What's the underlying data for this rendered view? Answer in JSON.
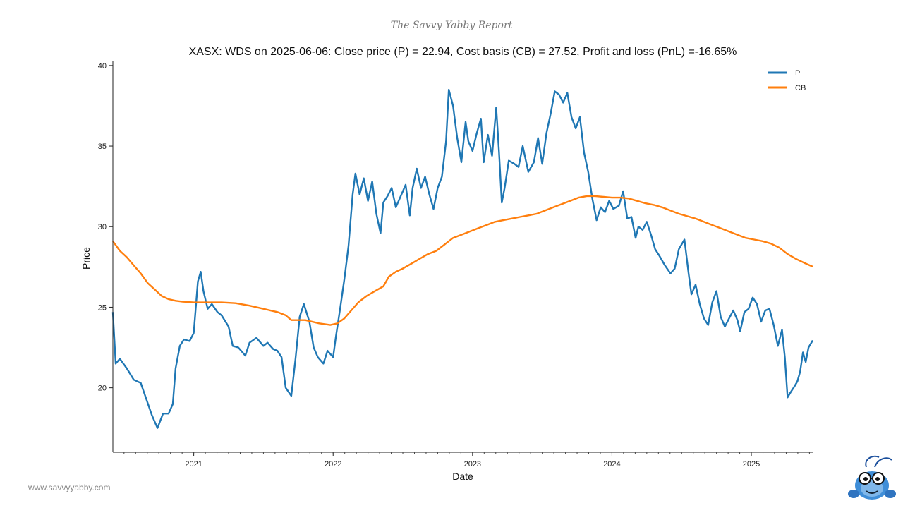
{
  "branding": {
    "report_title": "The Savvy Yabby Report",
    "website": "www.savvyyabby.com",
    "logo": "yabby-mascot-icon"
  },
  "colors": {
    "price": "#1f77b4",
    "cost_basis": "#ff7f0e"
  },
  "chart_data": {
    "type": "line",
    "title": "XASX: WDS on 2025-06-06: Close price (P) = 22.94, Cost basis (CB) = 27.52, Profit and loss (PnL) =-16.65%",
    "xlabel": "Date",
    "ylabel": "Price",
    "xlim": [
      2020.42,
      2025.44
    ],
    "ylim": [
      16.0,
      40.3
    ],
    "x_ticks": [
      {
        "value": 2021.0,
        "label": "2021"
      },
      {
        "value": 2022.0,
        "label": "2022"
      },
      {
        "value": 2023.0,
        "label": "2023"
      },
      {
        "value": 2024.0,
        "label": "2024"
      },
      {
        "value": 2025.0,
        "label": "2025"
      }
    ],
    "y_ticks": [
      {
        "value": 20,
        "label": "20"
      },
      {
        "value": 25,
        "label": "25"
      },
      {
        "value": 30,
        "label": "30"
      },
      {
        "value": 35,
        "label": "35"
      },
      {
        "value": 40,
        "label": "40"
      }
    ],
    "legend": {
      "position": "top-right"
    },
    "series": [
      {
        "name": "P",
        "points": [
          [
            2020.42,
            24.7
          ],
          [
            2020.44,
            21.5
          ],
          [
            2020.47,
            21.8
          ],
          [
            2020.52,
            21.2
          ],
          [
            2020.57,
            20.5
          ],
          [
            2020.62,
            20.3
          ],
          [
            2020.66,
            19.3
          ],
          [
            2020.7,
            18.3
          ],
          [
            2020.74,
            17.5
          ],
          [
            2020.78,
            18.4
          ],
          [
            2020.82,
            18.4
          ],
          [
            2020.85,
            19.0
          ],
          [
            2020.87,
            21.2
          ],
          [
            2020.9,
            22.6
          ],
          [
            2020.93,
            23.0
          ],
          [
            2020.97,
            22.9
          ],
          [
            2021.0,
            23.4
          ],
          [
            2021.03,
            26.6
          ],
          [
            2021.05,
            27.2
          ],
          [
            2021.07,
            26.0
          ],
          [
            2021.1,
            24.9
          ],
          [
            2021.13,
            25.2
          ],
          [
            2021.17,
            24.7
          ],
          [
            2021.2,
            24.5
          ],
          [
            2021.25,
            23.8
          ],
          [
            2021.28,
            22.6
          ],
          [
            2021.32,
            22.5
          ],
          [
            2021.37,
            22.0
          ],
          [
            2021.4,
            22.8
          ],
          [
            2021.45,
            23.1
          ],
          [
            2021.5,
            22.6
          ],
          [
            2021.53,
            22.8
          ],
          [
            2021.57,
            22.4
          ],
          [
            2021.6,
            22.3
          ],
          [
            2021.63,
            21.9
          ],
          [
            2021.66,
            20.0
          ],
          [
            2021.7,
            19.5
          ],
          [
            2021.73,
            21.8
          ],
          [
            2021.76,
            24.4
          ],
          [
            2021.79,
            25.2
          ],
          [
            2021.83,
            24.1
          ],
          [
            2021.86,
            22.5
          ],
          [
            2021.89,
            21.9
          ],
          [
            2021.93,
            21.5
          ],
          [
            2021.96,
            22.3
          ],
          [
            2022.0,
            21.9
          ],
          [
            2022.02,
            23.2
          ],
          [
            2022.05,
            24.9
          ],
          [
            2022.08,
            26.7
          ],
          [
            2022.11,
            28.8
          ],
          [
            2022.14,
            32.0
          ],
          [
            2022.16,
            33.3
          ],
          [
            2022.19,
            32.0
          ],
          [
            2022.22,
            33.0
          ],
          [
            2022.25,
            31.6
          ],
          [
            2022.28,
            32.8
          ],
          [
            2022.31,
            30.8
          ],
          [
            2022.34,
            29.6
          ],
          [
            2022.36,
            31.5
          ],
          [
            2022.39,
            31.9
          ],
          [
            2022.42,
            32.4
          ],
          [
            2022.45,
            31.2
          ],
          [
            2022.48,
            31.8
          ],
          [
            2022.52,
            32.6
          ],
          [
            2022.55,
            30.7
          ],
          [
            2022.57,
            32.4
          ],
          [
            2022.6,
            33.6
          ],
          [
            2022.63,
            32.4
          ],
          [
            2022.66,
            33.1
          ],
          [
            2022.69,
            32.0
          ],
          [
            2022.72,
            31.1
          ],
          [
            2022.75,
            32.4
          ],
          [
            2022.78,
            33.1
          ],
          [
            2022.81,
            35.3
          ],
          [
            2022.83,
            38.5
          ],
          [
            2022.86,
            37.5
          ],
          [
            2022.89,
            35.5
          ],
          [
            2022.92,
            34.0
          ],
          [
            2022.95,
            36.5
          ],
          [
            2022.97,
            35.3
          ],
          [
            2023.0,
            34.7
          ],
          [
            2023.03,
            35.8
          ],
          [
            2023.06,
            36.7
          ],
          [
            2023.08,
            34.0
          ],
          [
            2023.11,
            35.7
          ],
          [
            2023.14,
            34.4
          ],
          [
            2023.17,
            37.4
          ],
          [
            2023.19,
            34.6
          ],
          [
            2023.21,
            31.5
          ],
          [
            2023.23,
            32.4
          ],
          [
            2023.26,
            34.1
          ],
          [
            2023.3,
            33.9
          ],
          [
            2023.33,
            33.7
          ],
          [
            2023.36,
            35.0
          ],
          [
            2023.4,
            33.4
          ],
          [
            2023.44,
            34.0
          ],
          [
            2023.47,
            35.5
          ],
          [
            2023.5,
            33.9
          ],
          [
            2023.53,
            35.8
          ],
          [
            2023.56,
            37.0
          ],
          [
            2023.59,
            38.4
          ],
          [
            2023.62,
            38.2
          ],
          [
            2023.65,
            37.7
          ],
          [
            2023.68,
            38.3
          ],
          [
            2023.71,
            36.8
          ],
          [
            2023.74,
            36.1
          ],
          [
            2023.77,
            36.8
          ],
          [
            2023.8,
            34.6
          ],
          [
            2023.83,
            33.4
          ],
          [
            2023.86,
            31.7
          ],
          [
            2023.89,
            30.4
          ],
          [
            2023.92,
            31.2
          ],
          [
            2023.95,
            30.9
          ],
          [
            2023.98,
            31.6
          ],
          [
            2024.01,
            31.1
          ],
          [
            2024.05,
            31.3
          ],
          [
            2024.08,
            32.2
          ],
          [
            2024.11,
            30.5
          ],
          [
            2024.14,
            30.6
          ],
          [
            2024.17,
            29.3
          ],
          [
            2024.19,
            30.0
          ],
          [
            2024.22,
            29.8
          ],
          [
            2024.25,
            30.3
          ],
          [
            2024.28,
            29.5
          ],
          [
            2024.31,
            28.6
          ],
          [
            2024.34,
            28.2
          ],
          [
            2024.38,
            27.6
          ],
          [
            2024.42,
            27.1
          ],
          [
            2024.45,
            27.4
          ],
          [
            2024.48,
            28.6
          ],
          [
            2024.52,
            29.2
          ],
          [
            2024.55,
            27.1
          ],
          [
            2024.57,
            25.8
          ],
          [
            2024.6,
            26.4
          ],
          [
            2024.63,
            25.2
          ],
          [
            2024.66,
            24.3
          ],
          [
            2024.69,
            23.9
          ],
          [
            2024.72,
            25.3
          ],
          [
            2024.75,
            26.0
          ],
          [
            2024.78,
            24.4
          ],
          [
            2024.81,
            23.8
          ],
          [
            2024.84,
            24.3
          ],
          [
            2024.87,
            24.8
          ],
          [
            2024.9,
            24.2
          ],
          [
            2024.92,
            23.5
          ],
          [
            2024.95,
            24.7
          ],
          [
            2024.98,
            24.9
          ],
          [
            2025.01,
            25.6
          ],
          [
            2025.04,
            25.2
          ],
          [
            2025.07,
            24.1
          ],
          [
            2025.1,
            24.8
          ],
          [
            2025.13,
            24.9
          ],
          [
            2025.16,
            23.9
          ],
          [
            2025.19,
            22.6
          ],
          [
            2025.22,
            23.6
          ],
          [
            2025.24,
            21.9
          ],
          [
            2025.26,
            19.4
          ],
          [
            2025.28,
            19.7
          ],
          [
            2025.31,
            20.1
          ],
          [
            2025.33,
            20.4
          ],
          [
            2025.35,
            21.0
          ],
          [
            2025.37,
            22.2
          ],
          [
            2025.39,
            21.6
          ],
          [
            2025.41,
            22.5
          ],
          [
            2025.44,
            22.94
          ]
        ]
      },
      {
        "name": "CB",
        "points": [
          [
            2020.42,
            29.1
          ],
          [
            2020.47,
            28.5
          ],
          [
            2020.52,
            28.1
          ],
          [
            2020.57,
            27.6
          ],
          [
            2020.62,
            27.1
          ],
          [
            2020.67,
            26.5
          ],
          [
            2020.72,
            26.1
          ],
          [
            2020.77,
            25.7
          ],
          [
            2020.82,
            25.5
          ],
          [
            2020.87,
            25.4
          ],
          [
            2020.92,
            25.35
          ],
          [
            2021.0,
            25.3
          ],
          [
            2021.1,
            25.3
          ],
          [
            2021.2,
            25.3
          ],
          [
            2021.3,
            25.25
          ],
          [
            2021.4,
            25.1
          ],
          [
            2021.5,
            24.9
          ],
          [
            2021.6,
            24.7
          ],
          [
            2021.66,
            24.5
          ],
          [
            2021.7,
            24.2
          ],
          [
            2021.8,
            24.2
          ],
          [
            2021.9,
            24.0
          ],
          [
            2021.98,
            23.9
          ],
          [
            2022.03,
            24.0
          ],
          [
            2022.08,
            24.3
          ],
          [
            2022.13,
            24.8
          ],
          [
            2022.18,
            25.3
          ],
          [
            2022.24,
            25.7
          ],
          [
            2022.3,
            26.0
          ],
          [
            2022.36,
            26.3
          ],
          [
            2022.4,
            26.9
          ],
          [
            2022.45,
            27.2
          ],
          [
            2022.5,
            27.4
          ],
          [
            2022.56,
            27.7
          ],
          [
            2022.62,
            28.0
          ],
          [
            2022.68,
            28.3
          ],
          [
            2022.74,
            28.5
          ],
          [
            2022.8,
            28.9
          ],
          [
            2022.86,
            29.3
          ],
          [
            2022.92,
            29.5
          ],
          [
            2022.98,
            29.7
          ],
          [
            2023.04,
            29.9
          ],
          [
            2023.1,
            30.1
          ],
          [
            2023.16,
            30.3
          ],
          [
            2023.22,
            30.4
          ],
          [
            2023.28,
            30.5
          ],
          [
            2023.34,
            30.6
          ],
          [
            2023.4,
            30.7
          ],
          [
            2023.46,
            30.8
          ],
          [
            2023.52,
            31.0
          ],
          [
            2023.58,
            31.2
          ],
          [
            2023.64,
            31.4
          ],
          [
            2023.7,
            31.6
          ],
          [
            2023.76,
            31.8
          ],
          [
            2023.82,
            31.9
          ],
          [
            2023.88,
            31.9
          ],
          [
            2023.94,
            31.85
          ],
          [
            2024.0,
            31.8
          ],
          [
            2024.06,
            31.8
          ],
          [
            2024.12,
            31.75
          ],
          [
            2024.18,
            31.6
          ],
          [
            2024.24,
            31.45
          ],
          [
            2024.3,
            31.35
          ],
          [
            2024.36,
            31.2
          ],
          [
            2024.42,
            31.0
          ],
          [
            2024.48,
            30.8
          ],
          [
            2024.54,
            30.65
          ],
          [
            2024.6,
            30.5
          ],
          [
            2024.66,
            30.3
          ],
          [
            2024.72,
            30.1
          ],
          [
            2024.78,
            29.9
          ],
          [
            2024.84,
            29.7
          ],
          [
            2024.9,
            29.5
          ],
          [
            2024.96,
            29.3
          ],
          [
            2025.02,
            29.2
          ],
          [
            2025.08,
            29.1
          ],
          [
            2025.14,
            28.95
          ],
          [
            2025.2,
            28.7
          ],
          [
            2025.26,
            28.3
          ],
          [
            2025.32,
            28.0
          ],
          [
            2025.38,
            27.75
          ],
          [
            2025.44,
            27.52
          ]
        ]
      }
    ]
  }
}
